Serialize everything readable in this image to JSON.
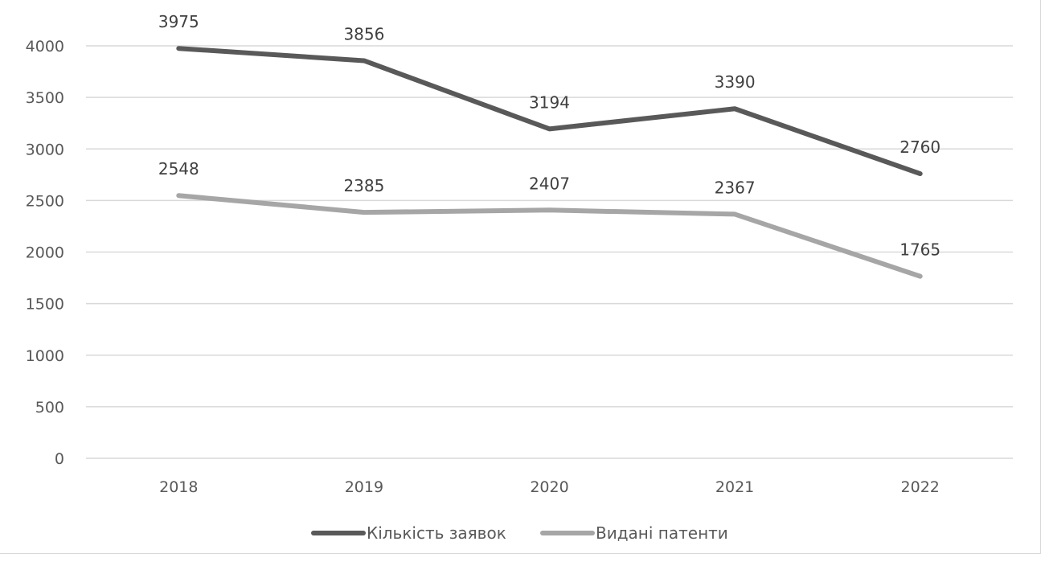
{
  "chart_data": {
    "type": "line",
    "title": "",
    "xlabel": "",
    "ylabel": "",
    "categories": [
      "2018",
      "2019",
      "2020",
      "2021",
      "2022"
    ],
    "ylim": [
      0,
      4000
    ],
    "yticks": [
      0,
      500,
      1000,
      1500,
      2000,
      2500,
      3000,
      3500,
      4000
    ],
    "grid": "horizontal",
    "legend_position": "bottom",
    "data_labels": true,
    "series": [
      {
        "name": "Кількість заявок",
        "color": "#595959",
        "values": [
          3975,
          3856,
          3194,
          3390,
          2760
        ]
      },
      {
        "name": "Видані патенти",
        "color": "#a6a6a6",
        "values": [
          2548,
          2385,
          2407,
          2367,
          1765
        ]
      }
    ]
  }
}
